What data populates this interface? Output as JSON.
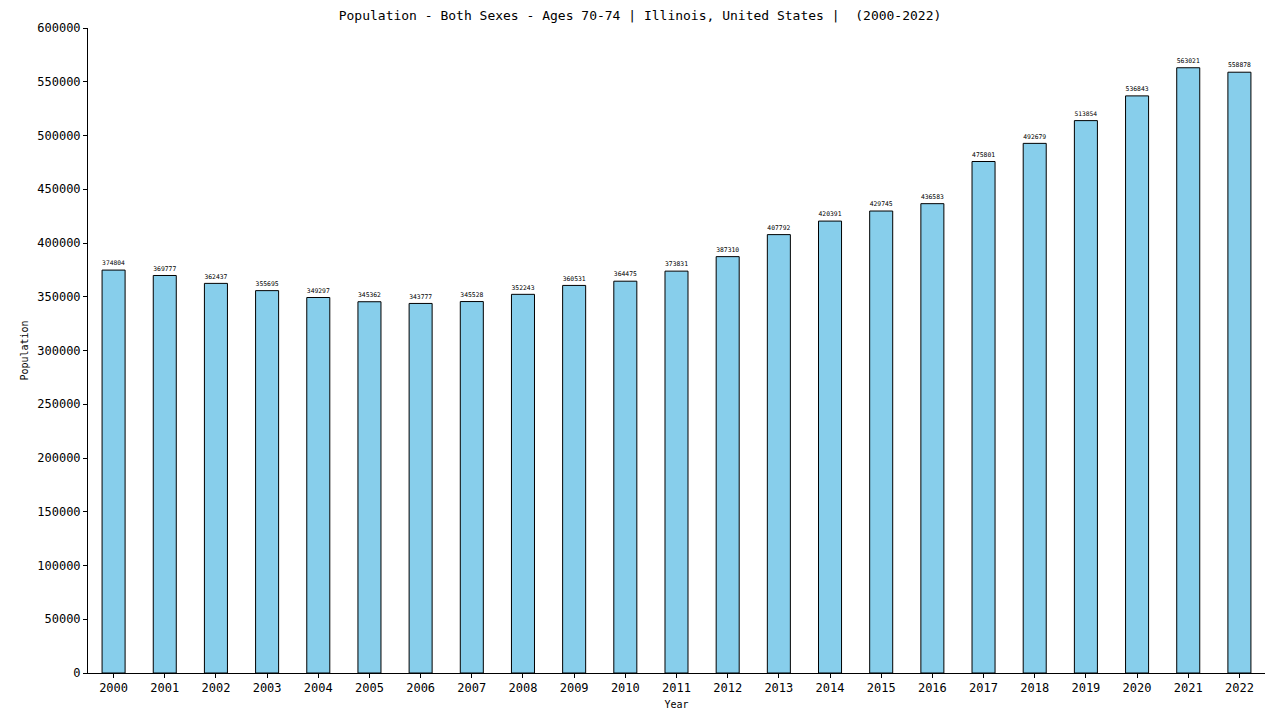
{
  "chart_data": {
    "type": "bar",
    "title": "Population - Both Sexes - Ages 70-74 | Illinois, United States |  (2000-2022)",
    "x_label": "Year",
    "y_label": "Population",
    "categories": [
      "2000",
      "2001",
      "2002",
      "2003",
      "2004",
      "2005",
      "2006",
      "2007",
      "2008",
      "2009",
      "2010",
      "2011",
      "2012",
      "2013",
      "2014",
      "2015",
      "2016",
      "2017",
      "2018",
      "2019",
      "2020",
      "2021",
      "2022"
    ],
    "values": [
      374804,
      369777,
      362437,
      355695,
      349297,
      345362,
      343777,
      345528,
      352243,
      360531,
      364475,
      373831,
      387310,
      407792,
      420391,
      429745,
      436583,
      475801,
      492679,
      513854,
      536843,
      563021,
      558878
    ],
    "color": "#87ceeb",
    "ylim": [
      0,
      600000
    ],
    "yticks": [
      0,
      50000,
      100000,
      150000,
      200000,
      250000,
      300000,
      350000,
      400000,
      450000,
      500000,
      550000,
      600000
    ],
    "grid": false,
    "data_labels": true
  }
}
